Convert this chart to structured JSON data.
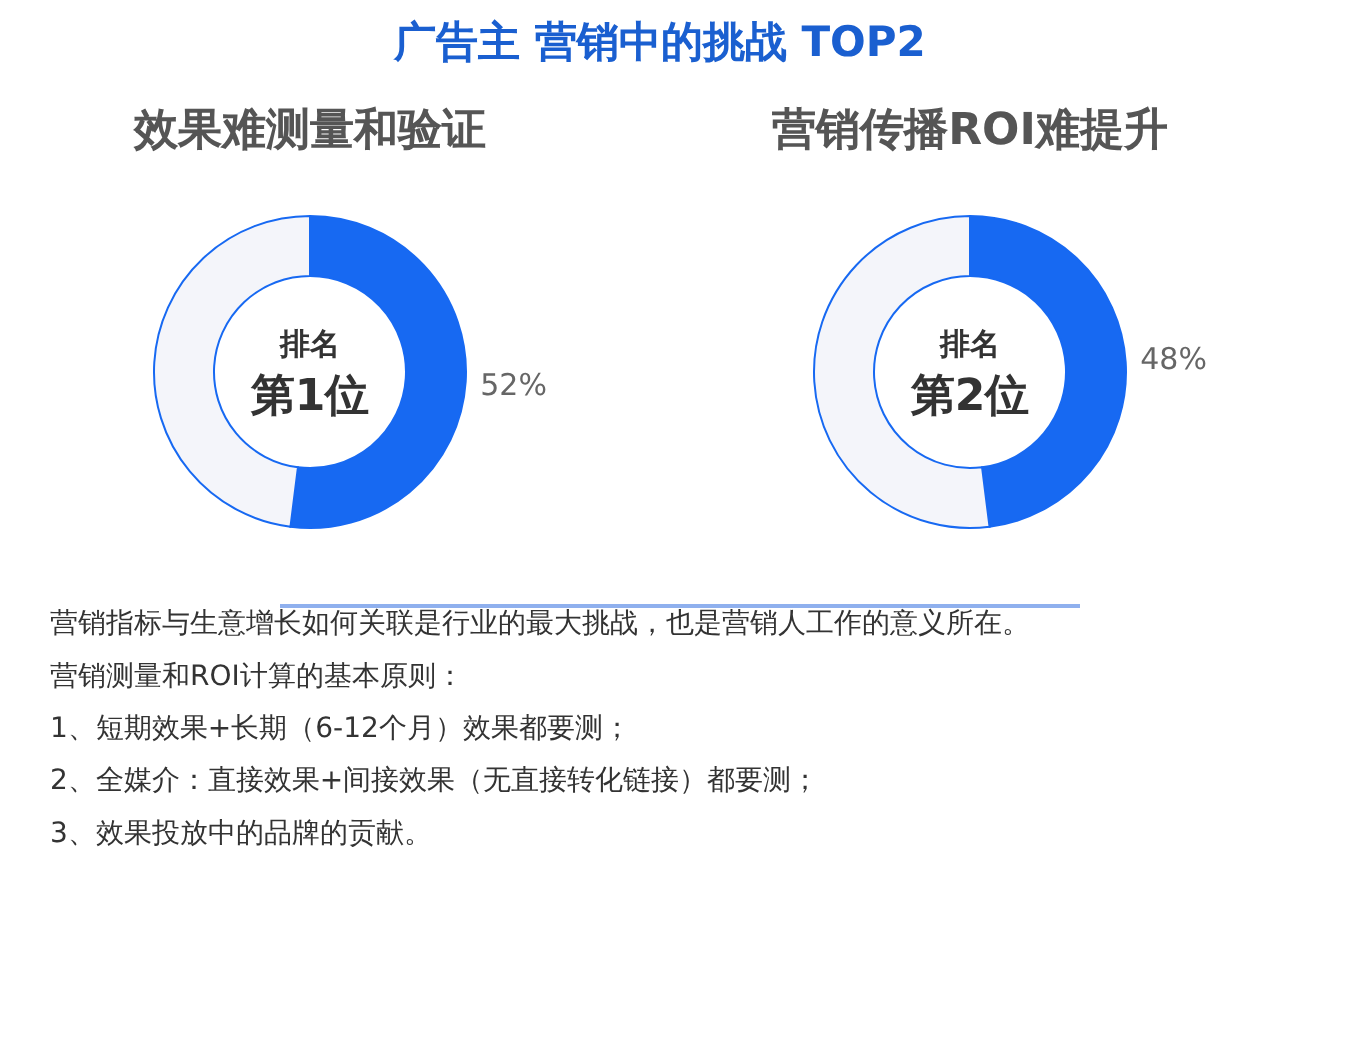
{
  "chart_data": [
    {
      "type": "other",
      "title": "广告主 营销中的挑战 TOP2"
    },
    {
      "type": "donut",
      "title": "效果难测量和验证",
      "categories": [
        null,
        null
      ],
      "values": [
        52,
        48
      ],
      "colors": [
        "#1769f2",
        "#f4f5fa"
      ],
      "value_labels": [
        "52%",
        null
      ],
      "annotations": [
        "排名",
        "第1位"
      ]
    },
    {
      "type": "donut",
      "title": "营销传播ROI难提升",
      "categories": [
        null,
        null
      ],
      "values": [
        48,
        52
      ],
      "colors": [
        "#1769f2",
        "#f4f5fa"
      ],
      "value_labels": [
        "48%",
        null
      ],
      "annotations": [
        "排名",
        "第2位"
      ]
    },
    {
      "type": "other",
      "annotations": [
        "营销指标与生意增长如何关联是行业的最大挑战，也是营销人工作的意义所在。",
        "营销测量和ROI计算的基本原则：",
        "1、短期效果+长期（6-12个月）效果都要测；",
        "2、全媒介：直接效果+间接效果（无直接转化链接）都要测；",
        "3、效果投放中的品牌的贡献。"
      ]
    }
  ]
}
